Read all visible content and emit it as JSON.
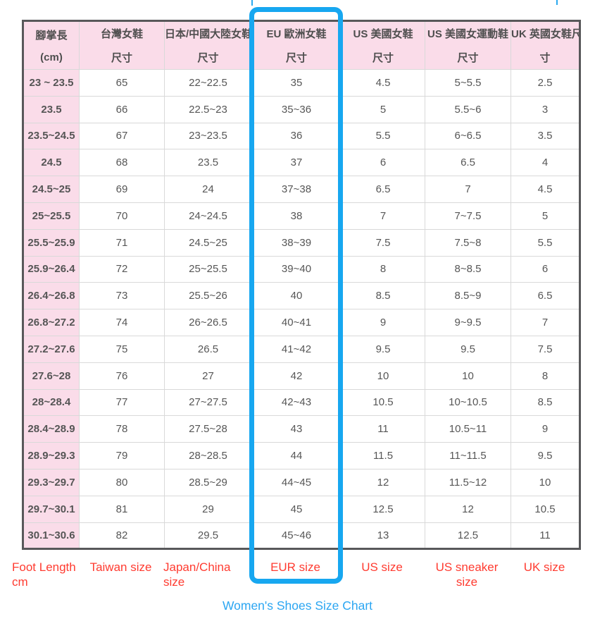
{
  "chart_data": {
    "type": "table",
    "title": "Women's Shoes Size Chart",
    "columns": [
      {
        "zh_line1": "腳掌長",
        "zh_line2": "(cm)",
        "en": "Foot Length cm"
      },
      {
        "zh_line1": "台灣女鞋",
        "zh_line2": "尺寸",
        "en": "Taiwan size"
      },
      {
        "zh_line1": "日本/中國大陸女鞋",
        "zh_line2": "尺寸",
        "en": "Japan/China size"
      },
      {
        "zh_line1": "EU 歐洲女鞋",
        "zh_line2": "尺寸",
        "en": "EUR size"
      },
      {
        "zh_line1": "US 美國女鞋",
        "zh_line2": "尺寸",
        "en": "US size"
      },
      {
        "zh_line1": "US 美國女運動鞋",
        "zh_line2": "尺寸",
        "en": "US sneaker size"
      },
      {
        "zh_line1": "UK 英國女鞋尺",
        "zh_line2": "寸",
        "en": "UK size"
      }
    ],
    "rows": [
      [
        "23 ~ 23.5",
        "65",
        "22~22.5",
        "35",
        "4.5",
        "5~5.5",
        "2.5"
      ],
      [
        "23.5",
        "66",
        "22.5~23",
        "35~36",
        "5",
        "5.5~6",
        "3"
      ],
      [
        "23.5~24.5",
        "67",
        "23~23.5",
        "36",
        "5.5",
        "6~6.5",
        "3.5"
      ],
      [
        "24.5",
        "68",
        "23.5",
        "37",
        "6",
        "6.5",
        "4"
      ],
      [
        "24.5~25",
        "69",
        "24",
        "37~38",
        "6.5",
        "7",
        "4.5"
      ],
      [
        "25~25.5",
        "70",
        "24~24.5",
        "38",
        "7",
        "7~7.5",
        "5"
      ],
      [
        "25.5~25.9",
        "71",
        "24.5~25",
        "38~39",
        "7.5",
        "7.5~8",
        "5.5"
      ],
      [
        "25.9~26.4",
        "72",
        "25~25.5",
        "39~40",
        "8",
        "8~8.5",
        "6"
      ],
      [
        "26.4~26.8",
        "73",
        "25.5~26",
        "40",
        "8.5",
        "8.5~9",
        "6.5"
      ],
      [
        "26.8~27.2",
        "74",
        "26~26.5",
        "40~41",
        "9",
        "9~9.5",
        "7"
      ],
      [
        "27.2~27.6",
        "75",
        "26.5",
        "41~42",
        "9.5",
        "9.5",
        "7.5"
      ],
      [
        "27.6~28",
        "76",
        "27",
        "42",
        "10",
        "10",
        "8"
      ],
      [
        "28~28.4",
        "77",
        "27~27.5",
        "42~43",
        "10.5",
        "10~10.5",
        "8.5"
      ],
      [
        "28.4~28.9",
        "78",
        "27.5~28",
        "43",
        "11",
        "10.5~11",
        "9"
      ],
      [
        "28.9~29.3",
        "79",
        "28~28.5",
        "44",
        "11.5",
        "11~11.5",
        "9.5"
      ],
      [
        "29.3~29.7",
        "80",
        "28.5~29",
        "44~45",
        "12",
        "11.5~12",
        "10"
      ],
      [
        "29.7~30.1",
        "81",
        "29",
        "45",
        "12.5",
        "12",
        "10.5"
      ],
      [
        "30.1~30.6",
        "82",
        "29.5",
        "45~46",
        "13",
        "12.5",
        "11"
      ]
    ],
    "highlighted_column": "EU 歐洲女鞋 尺寸",
    "legend_position": "none",
    "grid": true
  },
  "colors": {
    "header_pink": "#fadce9",
    "highlight_blue": "#17a7f0",
    "label_red": "#ff3b30",
    "caption_blue": "#2ba6f2",
    "table_border_dark": "#58585a",
    "grid_line": "#d9d9d9",
    "cell_text": "#565656"
  }
}
